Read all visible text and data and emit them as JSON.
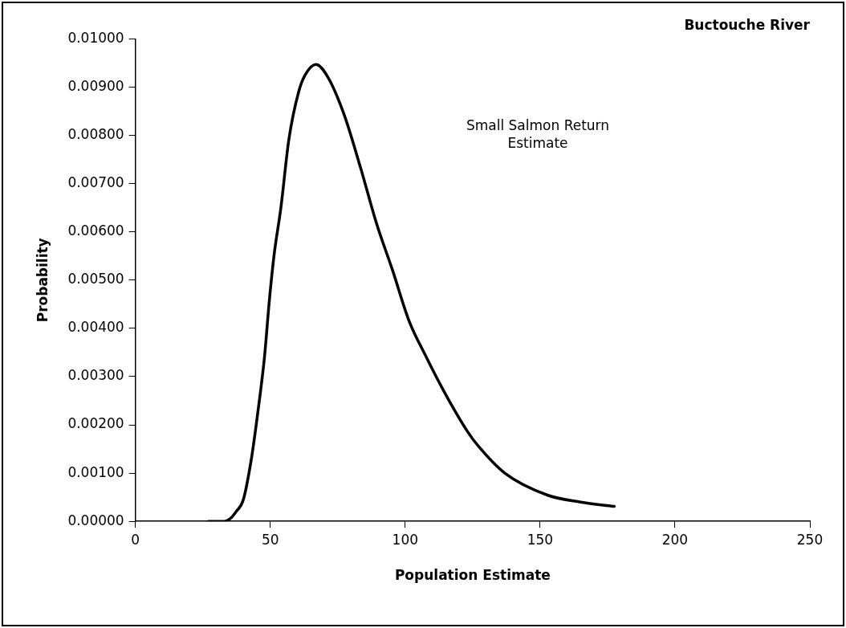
{
  "chart_data": {
    "type": "line",
    "title": "Buctouche River",
    "xlabel": "Population Estimate",
    "ylabel": "Probability",
    "annotations": [
      "Small Salmon Return Estimate"
    ],
    "series": [
      {
        "color": "#000000",
        "x": [
          27,
          33,
          35,
          37.3,
          40,
          43,
          45.4,
          47.8,
          49.6,
          51.4,
          53.9,
          56.9,
          60.5,
          62.9,
          66.9,
          71.3,
          77.3,
          83.4,
          89.4,
          95.4,
          101.4,
          107.5,
          114.7,
          123,
          127.1,
          136.9,
          152.9,
          165,
          177.5
        ],
        "values": [
          0,
          0,
          5e-05,
          0.0002,
          0.00045,
          0.0013,
          0.00227,
          0.00338,
          0.00455,
          0.00552,
          0.00649,
          0.00792,
          0.0089,
          0.00925,
          0.00947,
          0.00921,
          0.00844,
          0.00734,
          0.00617,
          0.00519,
          0.00416,
          0.00344,
          0.00266,
          0.00187,
          0.00156,
          0.001,
          0.00054,
          0.0004,
          0.00031
        ]
      }
    ],
    "xlim": [
      0,
      250
    ],
    "xticks": [
      0,
      50,
      100,
      150,
      200,
      250
    ],
    "ylim": [
      0,
      0.01
    ],
    "yticks": [
      {
        "value": 0,
        "label": "0.00000"
      },
      {
        "value": 0.001,
        "label": "0.00100"
      },
      {
        "value": 0.002,
        "label": "0.00200"
      },
      {
        "value": 0.003,
        "label": "0.00300"
      },
      {
        "value": 0.004,
        "label": "0.00400"
      },
      {
        "value": 0.005,
        "label": "0.00500"
      },
      {
        "value": 0.006,
        "label": "0.00600"
      },
      {
        "value": 0.007,
        "label": "0.00700"
      },
      {
        "value": 0.008,
        "label": "0.00800"
      },
      {
        "value": 0.009,
        "label": "0.00900"
      },
      {
        "value": 0.01,
        "label": "0.01000"
      }
    ],
    "grid": false,
    "legend": false,
    "marker": "none",
    "line_style": "solid"
  }
}
